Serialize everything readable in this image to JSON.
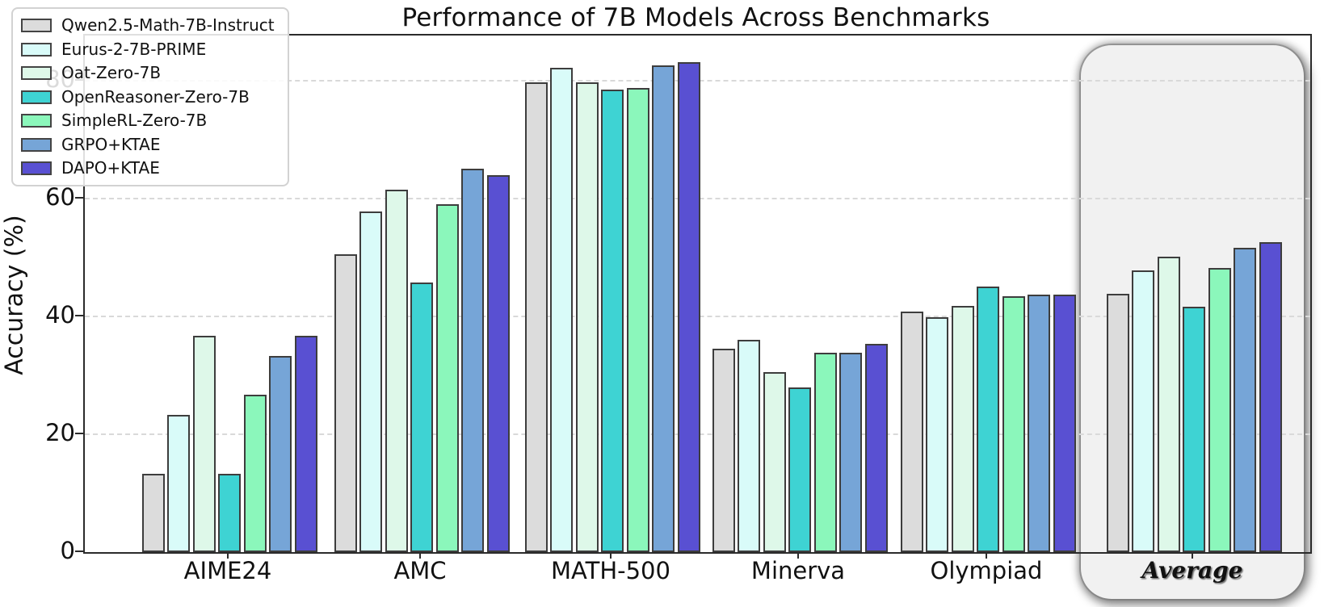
{
  "chart_data": {
    "type": "bar",
    "title": "Performance of 7B Models Across Benchmarks",
    "xlabel": "",
    "ylabel": "Accuracy (%)",
    "ylim": [
      0,
      87.7
    ],
    "yticks": [
      0,
      20,
      40,
      60,
      80
    ],
    "grid": "horizontal dashed gridlines at y ticks",
    "legend_position": "upper left",
    "categories": [
      "AIME24",
      "AMC",
      "MATH-500",
      "Minerva",
      "Olympiad",
      "Average"
    ],
    "highlight_category": "Average",
    "series": [
      {
        "name": "Qwen2.5-Math-7B-Instruct",
        "color": "#dcdcdc",
        "hatch": "none",
        "values": [
          13.3,
          50.5,
          79.8,
          34.6,
          40.8,
          43.8
        ]
      },
      {
        "name": "Eurus-2-7B-PRIME",
        "color": "#d9fbf9",
        "hatch": "none",
        "values": [
          23.3,
          57.8,
          82.2,
          36.0,
          39.9,
          47.8
        ]
      },
      {
        "name": "Oat-Zero-7B",
        "color": "#def8e9",
        "hatch": "none",
        "values": [
          36.7,
          61.5,
          79.8,
          30.5,
          41.8,
          50.1
        ]
      },
      {
        "name": "OpenReasoner-Zero-7B",
        "color": "#3ed3d3",
        "hatch": "none",
        "values": [
          13.3,
          45.8,
          78.5,
          27.9,
          45.1,
          41.7
        ]
      },
      {
        "name": "SimpleRL-Zero-7B",
        "color": "#8bf7bb",
        "hatch": "none",
        "values": [
          26.7,
          59.0,
          78.8,
          33.8,
          43.4,
          48.3
        ]
      },
      {
        "name": "GRPO+KTAE",
        "color": "#76a5d7",
        "hatch": "diagonal",
        "values": [
          33.3,
          65.1,
          82.6,
          33.8,
          43.7,
          51.7
        ]
      },
      {
        "name": "DAPO+KTAE",
        "color": "#5950d2",
        "hatch": "cross-diagonal",
        "values": [
          36.7,
          64.0,
          83.2,
          35.3,
          43.7,
          52.6
        ]
      }
    ]
  }
}
